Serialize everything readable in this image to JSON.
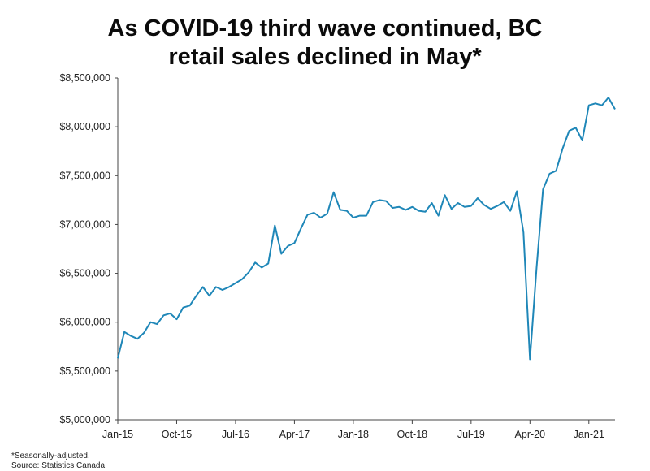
{
  "title_lines": [
    "As COVID-19 third wave continued, BC",
    "retail sales declined in May*"
  ],
  "footnotes": [
    "*Seasonally-adjusted.",
    "Source: Statistics Canada"
  ],
  "colors": {
    "line": "#1f87b8",
    "axis": "#444444"
  },
  "chart_data": {
    "type": "line",
    "title": "As COVID-19 third wave continued, BC retail sales declined in May*",
    "xlabel": "",
    "ylabel": "",
    "ylim": [
      5000000,
      8500000
    ],
    "yticks": [
      5000000,
      5500000,
      6000000,
      6500000,
      7000000,
      7500000,
      8000000,
      8500000
    ],
    "ytick_labels": [
      "$5,000,000",
      "$5,500,000",
      "$6,000,000",
      "$6,500,000",
      "$7,000,000",
      "$7,500,000",
      "$8,000,000",
      "$8,500,000"
    ],
    "xtick_labels": [
      "Jan-15",
      "Oct-15",
      "Jul-16",
      "Apr-17",
      "Jan-18",
      "Oct-18",
      "Jul-19",
      "Apr-20",
      "Jan-21"
    ],
    "x_start": "2015-01",
    "x_end": "2021-05",
    "grid": false,
    "series": [
      {
        "name": "",
        "values": [
          5630000,
          5900000,
          5860000,
          5830000,
          5890000,
          6000000,
          5980000,
          6070000,
          6090000,
          6030000,
          6150000,
          6170000,
          6270000,
          6360000,
          6270000,
          6360000,
          6330000,
          6360000,
          6400000,
          6440000,
          6510000,
          6610000,
          6560000,
          6600000,
          6990000,
          6700000,
          6780000,
          6810000,
          6960000,
          7100000,
          7120000,
          7070000,
          7110000,
          7330000,
          7150000,
          7140000,
          7070000,
          7090000,
          7090000,
          7230000,
          7250000,
          7240000,
          7170000,
          7180000,
          7150000,
          7180000,
          7140000,
          7130000,
          7220000,
          7090000,
          7300000,
          7160000,
          7220000,
          7180000,
          7190000,
          7270000,
          7200000,
          7160000,
          7190000,
          7230000,
          7140000,
          7340000,
          6920000,
          5620000,
          6550000,
          7360000,
          7520000,
          7550000,
          7780000,
          7960000,
          7990000,
          7860000,
          8220000,
          8240000,
          8220000,
          8300000,
          8180000
        ]
      }
    ]
  }
}
